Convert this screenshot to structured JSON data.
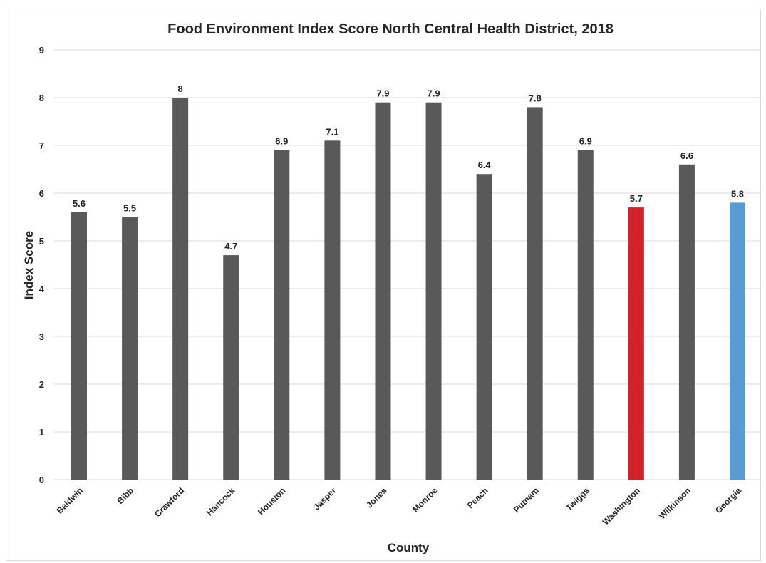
{
  "chart_data": {
    "type": "bar",
    "title": "Food Environment Index Score North Central Health District, 2018",
    "xlabel": "County",
    "ylabel": "Index Score",
    "ylim": [
      0,
      9
    ],
    "yticks": [
      "0",
      "1",
      "2",
      "3",
      "4",
      "5",
      "6",
      "7",
      "8",
      "9"
    ],
    "grid": true,
    "categories": [
      "Baldwin",
      "Bibb",
      "Crawford",
      "Hancock",
      "Houston",
      "Jasper",
      "Jones",
      "Monroe",
      "Peach",
      "Putnam",
      "Twiggs",
      "Washington",
      "Wilkinson",
      "Georgia"
    ],
    "values": [
      5.6,
      5.5,
      8,
      4.7,
      6.9,
      7.1,
      7.9,
      7.9,
      6.4,
      7.8,
      6.9,
      5.7,
      6.6,
      5.8
    ],
    "data_labels": [
      "5.6",
      "5.5",
      "8",
      "4.7",
      "6.9",
      "7.1",
      "7.9",
      "7.9",
      "6.4",
      "7.8",
      "6.9",
      "5.7",
      "6.6",
      "5.8"
    ],
    "colors": {
      "default": "#595959",
      "Washington": "#d2232a",
      "Georgia": "#5b9bd5"
    }
  }
}
